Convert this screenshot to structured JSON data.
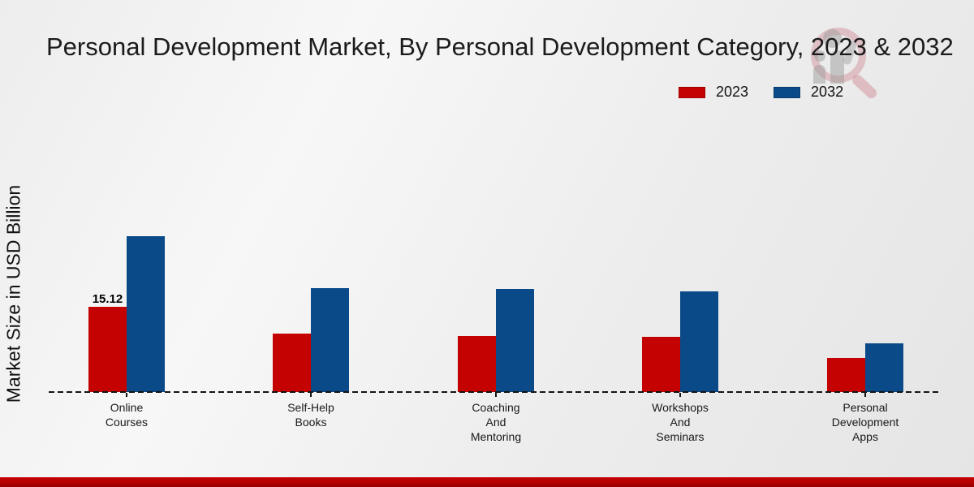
{
  "title": "Personal Development Market, By Personal Development Category, 2023 & 2032",
  "y_axis_label": "Market Size in USD Billion",
  "legend": {
    "items": [
      {
        "label": "2023",
        "color": "#c40202"
      },
      {
        "label": "2032",
        "color": "#0b4a88"
      }
    ]
  },
  "chart_data": {
    "type": "bar",
    "title": "Personal Development Market, By Personal Development Category, 2023 & 2032",
    "ylabel": "Market Size in USD Billion",
    "unit": "USD Billion",
    "categories": [
      "Online Courses",
      "Self-Help Books",
      "Coaching And Mentoring",
      "Workshops And Seminars",
      "Personal Development Apps"
    ],
    "category_label_lines": [
      [
        "Online",
        "Courses"
      ],
      [
        "Self-Help",
        "Books"
      ],
      [
        "Coaching",
        "And",
        "Mentoring"
      ],
      [
        "Workshops",
        "And",
        "Seminars"
      ],
      [
        "Personal",
        "Development",
        "Apps"
      ]
    ],
    "series": [
      {
        "name": "2023",
        "color": "#c40202",
        "values": [
          15.12,
          10.3,
          10.0,
          9.8,
          6.0
        ]
      },
      {
        "name": "2032",
        "color": "#0b4a88",
        "values": [
          27.6,
          18.5,
          18.3,
          17.8,
          8.6
        ]
      }
    ],
    "value_labels": [
      {
        "series": "2023",
        "category": "Online Courses",
        "text": "15.12"
      }
    ],
    "baseline_value": 0,
    "grid": false,
    "legend_position": "top-right",
    "x_axis_style": "dashed-zero-line"
  }
}
